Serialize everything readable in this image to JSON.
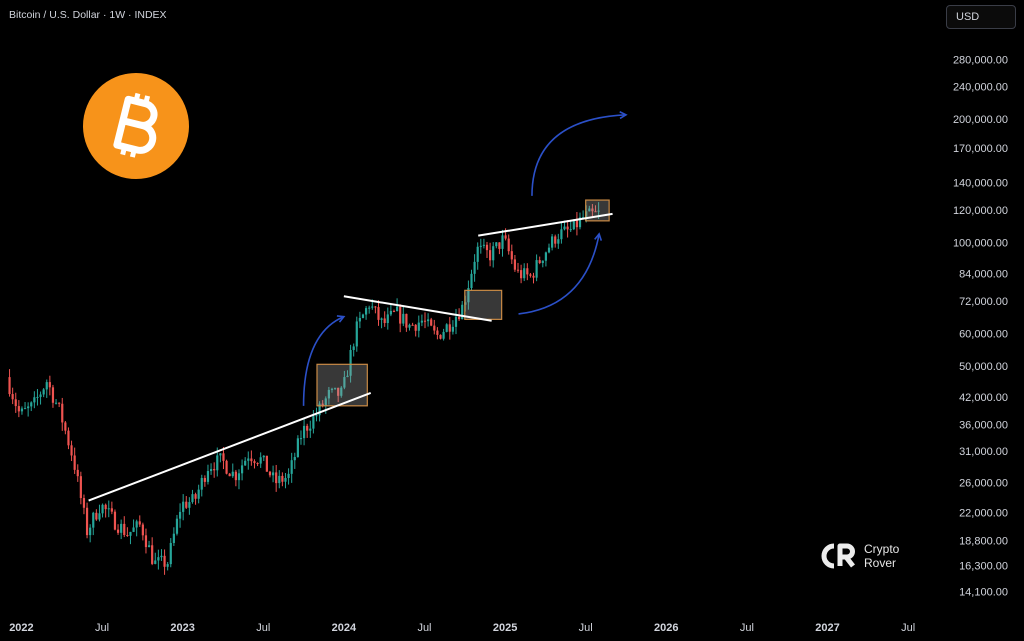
{
  "header": {
    "title": "Bitcoin / U.S. Dollar · 1W · INDEX"
  },
  "currency": {
    "label": "USD"
  },
  "watermark": {
    "line1": "Crypto",
    "line2": "Rover"
  },
  "colors": {
    "up": "#26a69a",
    "down": "#ef5350",
    "trendline": "#ffffff",
    "arrow": "#2b50c8",
    "box": "#c98a45",
    "bitcoin": "#f7931a"
  },
  "icons": {
    "logo": "bitcoin-logo-icon",
    "watermark": "crypto-rover-logo-icon"
  },
  "chart_data": {
    "type": "candlestick",
    "title": "Bitcoin / U.S. Dollar · 1W · INDEX",
    "y_scale": "log",
    "ylim": [
      13000,
      330000
    ],
    "y_ticks": [
      "280,000.00",
      "240,000.00",
      "200,000.00",
      "170,000.00",
      "140,000.00",
      "120,000.00",
      "100,000.00",
      "84,000.00",
      "72,000.00",
      "60,000.00",
      "50,000.00",
      "42,000.00",
      "36,000.00",
      "31,000.00",
      "26,000.00",
      "22,000.00",
      "18,800.00",
      "16,300.00",
      "14,100.00"
    ],
    "y_tick_values": [
      280000,
      240000,
      200000,
      170000,
      140000,
      120000,
      100000,
      84000,
      72000,
      60000,
      50000,
      42000,
      36000,
      31000,
      26000,
      22000,
      18800,
      16300,
      14100
    ],
    "x_ticks": [
      "2022",
      "Jul",
      "2023",
      "Jul",
      "2024",
      "Jul",
      "2025",
      "Jul",
      "2026",
      "Jul",
      "2027",
      "Jul"
    ],
    "x_tick_dates": [
      "2022-01",
      "2022-07",
      "2023-01",
      "2023-07",
      "2024-01",
      "2024-07",
      "2025-01",
      "2025-07",
      "2026-01",
      "2026-07",
      "2027-01",
      "2027-07"
    ],
    "xlim": [
      "2021-12",
      "2027-09"
    ],
    "price_path": [
      [
        "2021-12",
        47000
      ],
      [
        "2022-01",
        38000
      ],
      [
        "2022-02",
        40000
      ],
      [
        "2022-03",
        46000
      ],
      [
        "2022-04",
        38500
      ],
      [
        "2022-05",
        29500
      ],
      [
        "2022-06",
        19800
      ],
      [
        "2022-07",
        23000
      ],
      [
        "2022-08",
        21000
      ],
      [
        "2022-09",
        19500
      ],
      [
        "2022-10",
        20500
      ],
      [
        "2022-11",
        16500
      ],
      [
        "2022-12",
        16600
      ],
      [
        "2023-01",
        23000
      ],
      [
        "2023-02",
        23500
      ],
      [
        "2023-03",
        28500
      ],
      [
        "2023-04",
        29500
      ],
      [
        "2023-05",
        27000
      ],
      [
        "2023-06",
        30500
      ],
      [
        "2023-07",
        29500
      ],
      [
        "2023-08",
        26000
      ],
      [
        "2023-09",
        26900
      ],
      [
        "2023-10",
        34500
      ],
      [
        "2023-11",
        37800
      ],
      [
        "2023-12",
        42500
      ],
      [
        "2024-01",
        42800
      ],
      [
        "2024-02",
        61000
      ],
      [
        "2024-03",
        71000
      ],
      [
        "2024-04",
        63000
      ],
      [
        "2024-05",
        67500
      ],
      [
        "2024-06",
        62700
      ],
      [
        "2024-07",
        64600
      ],
      [
        "2024-08",
        59000
      ],
      [
        "2024-09",
        63500
      ],
      [
        "2024-10",
        70200
      ],
      [
        "2024-11",
        96400
      ],
      [
        "2024-12",
        93400
      ],
      [
        "2025-01",
        102000
      ],
      [
        "2025-02",
        84300
      ],
      [
        "2025-03",
        82500
      ],
      [
        "2025-04",
        94200
      ],
      [
        "2025-05",
        104600
      ],
      [
        "2025-06",
        107100
      ],
      [
        "2025-07",
        115700
      ],
      [
        "2025-08",
        117500
      ]
    ],
    "trendlines": [
      {
        "from": [
          "2022-06",
          23500
        ],
        "to": [
          "2024-03",
          43000
        ]
      },
      {
        "from": [
          "2024-01",
          74000
        ],
        "to": [
          "2024-12",
          64500
        ]
      },
      {
        "from": [
          "2024-11",
          104000
        ],
        "to": [
          "2025-09",
          117500
        ]
      }
    ],
    "highlight_boxes": [
      {
        "x": [
          "2023-11",
          "2024-02"
        ],
        "y": [
          40000,
          50500
        ]
      },
      {
        "x": [
          "2024-10",
          "2024-12"
        ],
        "y": [
          65000,
          76500
        ]
      },
      {
        "x": [
          "2025-07",
          "2025-08"
        ],
        "y": [
          113000,
          127000
        ]
      }
    ],
    "arrows": [
      {
        "from": [
          "2023-10",
          40000
        ],
        "ctrl": [
          "2023-10",
          60000
        ],
        "to": [
          "2024-01",
          66000
        ]
      },
      {
        "from": [
          "2025-02",
          67000
        ],
        "ctrl": [
          "2025-07",
          70000
        ],
        "to": [
          "2025-08",
          105000
        ]
      },
      {
        "from": [
          "2025-03",
          130000
        ],
        "ctrl": [
          "2025-03",
          200000
        ],
        "to": [
          "2025-10",
          205000
        ]
      }
    ]
  }
}
